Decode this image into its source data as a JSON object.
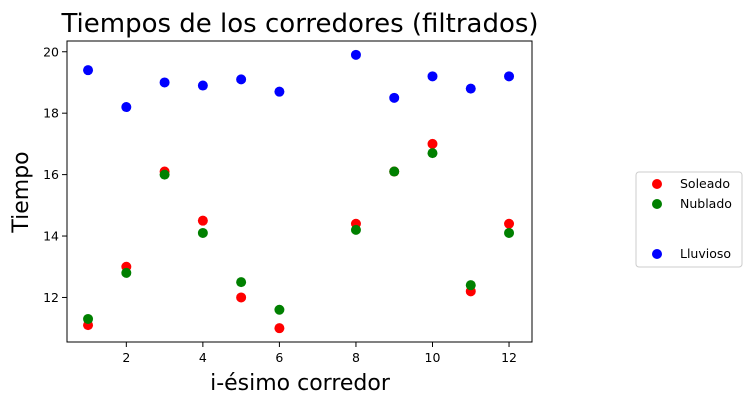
{
  "chart_data": {
    "type": "scatter",
    "title": "Tiempos de los corredores (filtrados)",
    "xlabel": "i-ésimo corredor",
    "ylabel": "Tiempo",
    "xlim": [
      0.45,
      12.6
    ],
    "ylim": [
      10.55,
      20.35
    ],
    "xticks": [
      2,
      4,
      6,
      8,
      10,
      12
    ],
    "yticks": [
      12,
      14,
      16,
      18,
      20
    ],
    "grid": false,
    "legend_position": "right, outside plot",
    "series": [
      {
        "name": "Soleado",
        "color": "#ff0000",
        "x": [
          1,
          2,
          3,
          4,
          5,
          6,
          8,
          9,
          10,
          11,
          12
        ],
        "y": [
          11.1,
          13.0,
          16.1,
          14.5,
          12.0,
          11.0,
          14.4,
          16.1,
          17.0,
          12.2,
          14.4
        ]
      },
      {
        "name": "Nublado",
        "color": "#008000",
        "x": [
          1,
          2,
          3,
          4,
          5,
          6,
          8,
          9,
          10,
          11,
          12
        ],
        "y": [
          11.3,
          12.8,
          16.0,
          14.1,
          12.5,
          11.6,
          14.2,
          16.1,
          16.7,
          12.4,
          14.1
        ]
      },
      {
        "name": "Lluvioso",
        "color": "#0000ff",
        "x": [
          1,
          2,
          3,
          4,
          5,
          6,
          8,
          9,
          10,
          11,
          12
        ],
        "y": [
          19.4,
          18.2,
          19.0,
          18.9,
          19.1,
          18.7,
          19.9,
          18.5,
          19.2,
          18.8,
          19.2
        ]
      }
    ]
  }
}
